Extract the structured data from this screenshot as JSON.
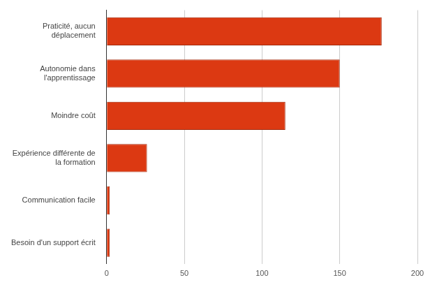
{
  "chart_data": {
    "type": "bar",
    "orientation": "horizontal",
    "categories": [
      [
        "Praticité, aucun",
        "déplacement"
      ],
      [
        "Autonomie dans",
        "l'apprentissage"
      ],
      [
        "Moindre coût"
      ],
      [
        "Expérience différente de",
        "la formation"
      ],
      [
        "Communication facile"
      ],
      [
        "Besoin d'un support écrit"
      ]
    ],
    "values": [
      177,
      150,
      115,
      26,
      2,
      2
    ],
    "color": "#dc3912",
    "xlim": [
      0,
      200
    ],
    "xticks": [
      0,
      50,
      100,
      150,
      200
    ],
    "grid": true
  }
}
